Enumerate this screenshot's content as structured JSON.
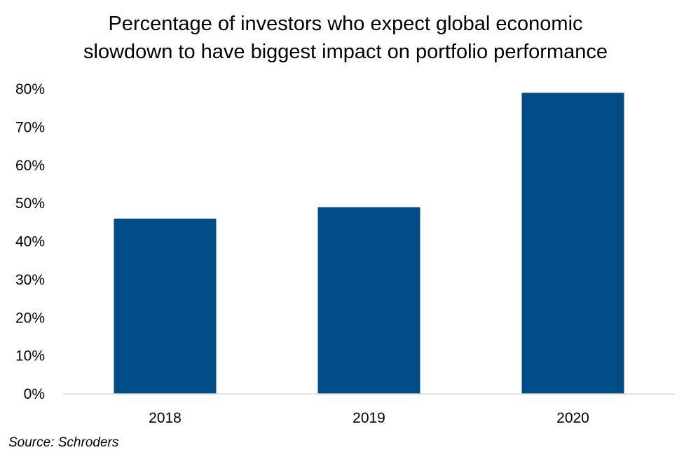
{
  "chart_data": {
    "type": "bar",
    "title_lines": [
      "Percentage of investors who expect global economic",
      "slowdown to have biggest impact on portfolio performance"
    ],
    "categories": [
      "2018",
      "2019",
      "2020"
    ],
    "values": [
      46,
      49,
      79
    ],
    "y_ticks": [
      0,
      10,
      20,
      30,
      40,
      50,
      60,
      70,
      80
    ],
    "y_tick_suffix": "%",
    "ylim": [
      0,
      80
    ],
    "xlabel": "",
    "ylabel": "",
    "grid": false,
    "legend": "none",
    "bar_color": "#004c87",
    "axis_color": "#d9d9d9"
  },
  "source": "Source: Schroders"
}
